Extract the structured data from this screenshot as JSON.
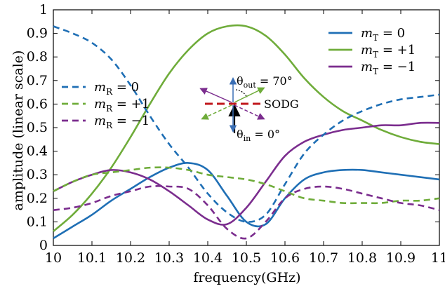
{
  "chart_data": {
    "type": "line",
    "xlabel": "frequency(GHz)",
    "ylabel": "amplitude (linear scale)",
    "xlim": [
      10,
      11
    ],
    "ylim": [
      0,
      1
    ],
    "xticks": [
      "10",
      "10.1",
      "10.2",
      "10.3",
      "10.4",
      "10.5",
      "10.6",
      "10.7",
      "10.8",
      "10.9",
      "11"
    ],
    "yticks": [
      "0",
      "0.1",
      "0.2",
      "0.3",
      "0.4",
      "0.5",
      "0.6",
      "0.7",
      "0.8",
      "0.9",
      "1"
    ],
    "grid": false,
    "x": [
      10.0,
      10.05,
      10.1,
      10.15,
      10.2,
      10.25,
      10.3,
      10.35,
      10.4,
      10.45,
      10.5,
      10.55,
      10.6,
      10.65,
      10.7,
      10.75,
      10.8,
      10.85,
      10.9,
      10.95,
      11.0
    ],
    "series": [
      {
        "name": "m_T = 0",
        "color": "#1f6fb5",
        "dash": "solid",
        "values": [
          0.03,
          0.08,
          0.13,
          0.19,
          0.24,
          0.29,
          0.33,
          0.35,
          0.32,
          0.21,
          0.1,
          0.09,
          0.2,
          0.28,
          0.31,
          0.32,
          0.32,
          0.31,
          0.3,
          0.29,
          0.28
        ]
      },
      {
        "name": "m_T = +1",
        "color": "#6fac3a",
        "dash": "solid",
        "values": [
          0.06,
          0.13,
          0.22,
          0.33,
          0.46,
          0.6,
          0.73,
          0.83,
          0.9,
          0.93,
          0.93,
          0.89,
          0.81,
          0.71,
          0.63,
          0.57,
          0.53,
          0.49,
          0.46,
          0.44,
          0.43
        ]
      },
      {
        "name": "m_T = −1",
        "color": "#7b2d8e",
        "dash": "solid",
        "values": [
          0.23,
          0.27,
          0.3,
          0.32,
          0.31,
          0.28,
          0.23,
          0.17,
          0.11,
          0.09,
          0.16,
          0.27,
          0.38,
          0.44,
          0.47,
          0.49,
          0.5,
          0.51,
          0.51,
          0.52,
          0.52
        ]
      },
      {
        "name": "m_R = 0",
        "color": "#1f6fb5",
        "dash": "dashed",
        "values": [
          0.93,
          0.9,
          0.86,
          0.79,
          0.68,
          0.55,
          0.43,
          0.33,
          0.22,
          0.14,
          0.1,
          0.13,
          0.26,
          0.39,
          0.47,
          0.53,
          0.57,
          0.6,
          0.62,
          0.63,
          0.64
        ]
      },
      {
        "name": "m_R = +1",
        "color": "#6fac3a",
        "dash": "dashed",
        "values": [
          0.23,
          0.27,
          0.3,
          0.31,
          0.32,
          0.33,
          0.33,
          0.32,
          0.3,
          0.29,
          0.28,
          0.26,
          0.23,
          0.2,
          0.19,
          0.18,
          0.18,
          0.18,
          0.19,
          0.19,
          0.2
        ]
      },
      {
        "name": "m_R = −1",
        "color": "#7b2d8e",
        "dash": "dashed",
        "values": [
          0.15,
          0.16,
          0.18,
          0.21,
          0.23,
          0.25,
          0.25,
          0.24,
          0.17,
          0.07,
          0.03,
          0.1,
          0.2,
          0.24,
          0.25,
          0.24,
          0.22,
          0.2,
          0.18,
          0.17,
          0.15
        ]
      }
    ],
    "legends": [
      {
        "position": "top-right",
        "entries": [
          {
            "series": 0,
            "label_main": "m",
            "label_sub": "T",
            "label_value": " = 0"
          },
          {
            "series": 1,
            "label_main": "m",
            "label_sub": "T",
            "label_value": " = +1"
          },
          {
            "series": 2,
            "label_main": "m",
            "label_sub": "T",
            "label_value": " = −1"
          }
        ]
      },
      {
        "position": "center-left",
        "entries": [
          {
            "series": 3,
            "label_main": "m",
            "label_sub": "R",
            "label_value": " = 0"
          },
          {
            "series": 4,
            "label_main": "m",
            "label_sub": "R",
            "label_value": " = +1"
          },
          {
            "series": 5,
            "label_main": "m",
            "label_sub": "R",
            "label_value": " = −1"
          }
        ]
      }
    ],
    "inset": {
      "theta_out_main": "θ",
      "theta_out_sub": "out",
      "theta_out_value": " = 70°",
      "theta_in_main": "θ",
      "theta_in_sub": "in",
      "theta_in_value": " = 0°",
      "surface_label": "SODG",
      "surface_color": "#c0161b"
    }
  }
}
